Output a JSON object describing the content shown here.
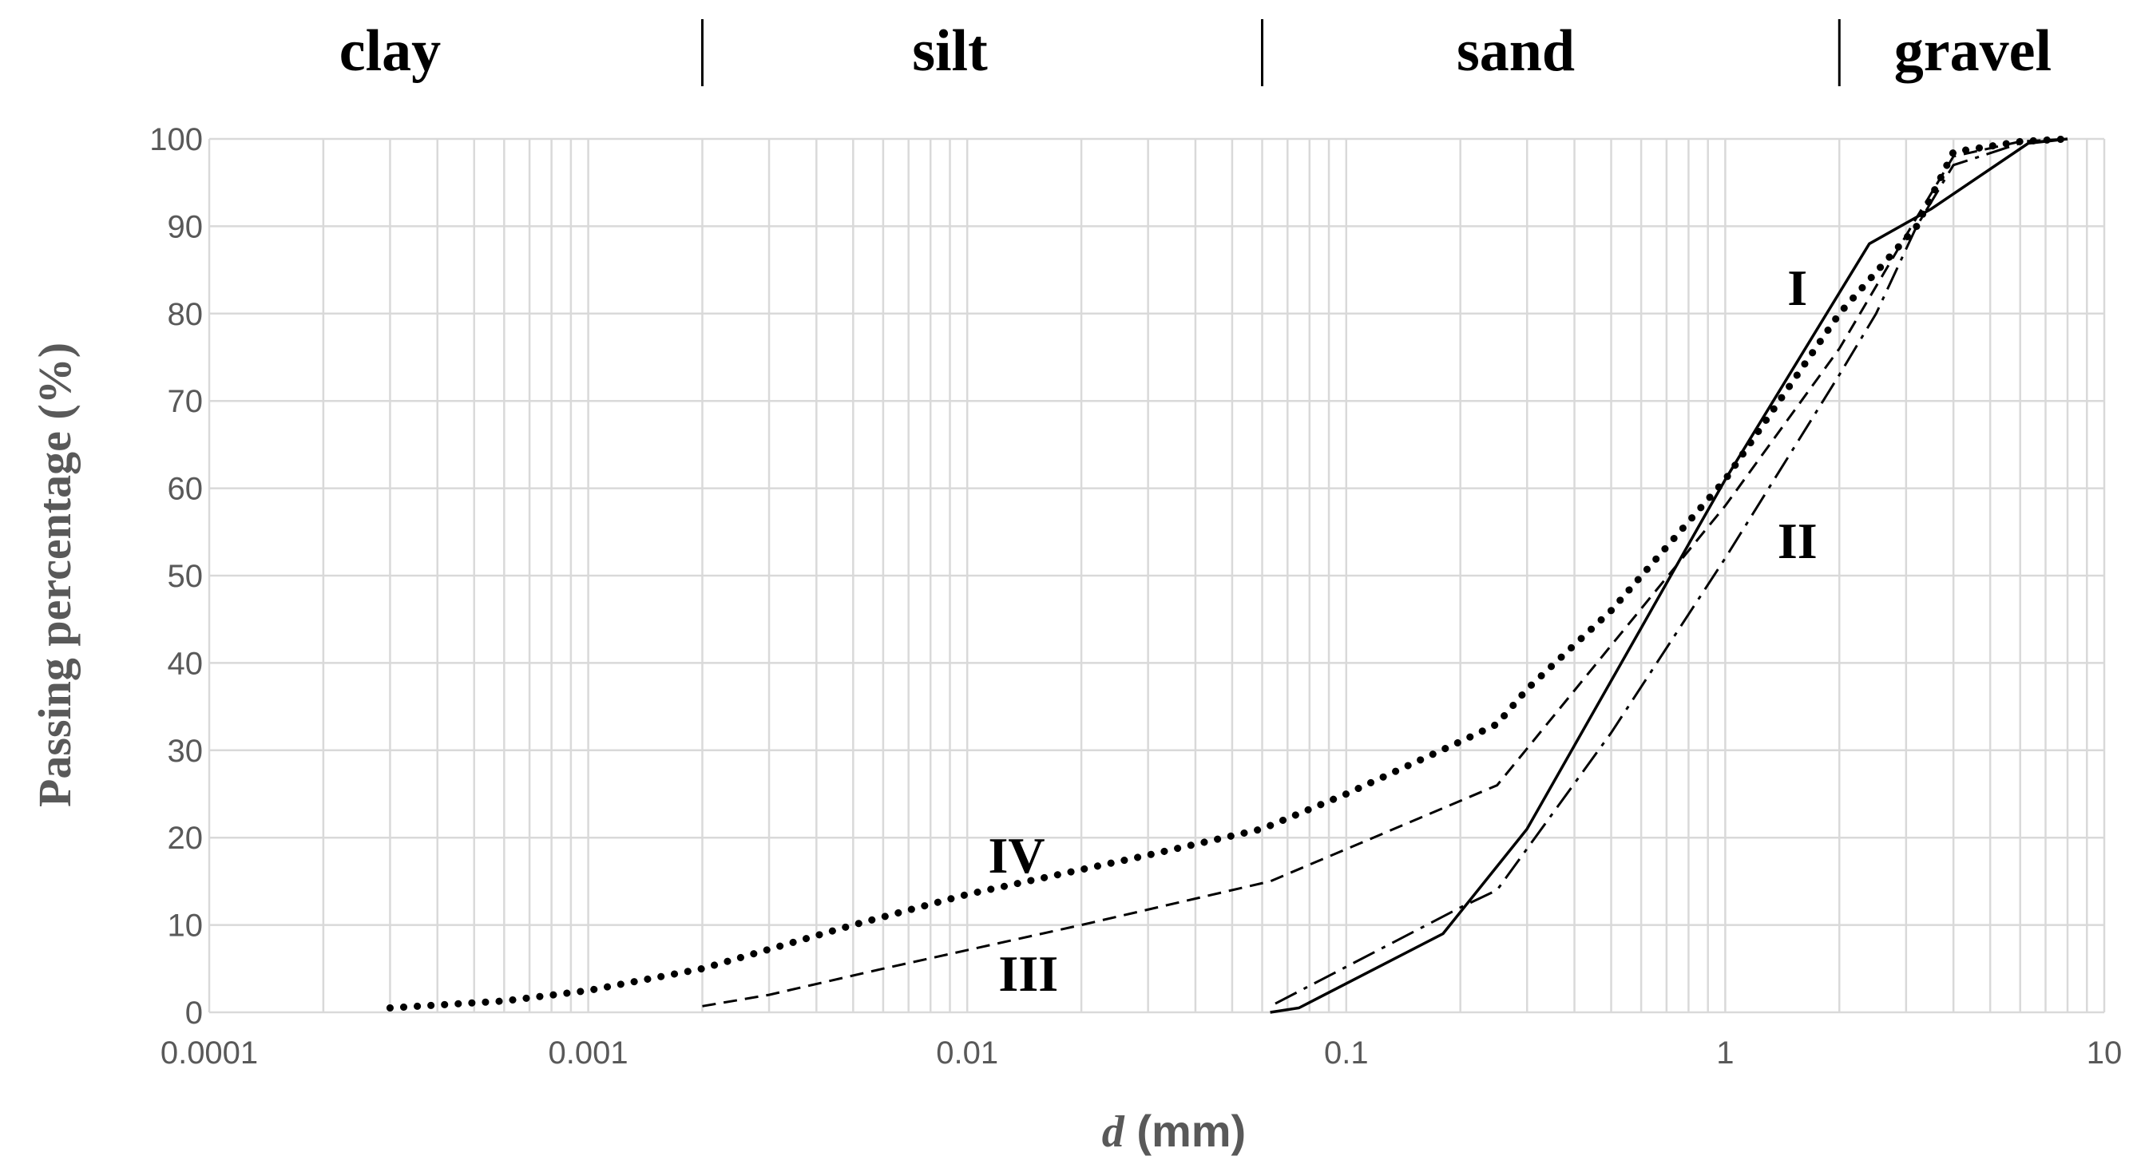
{
  "chart_data": {
    "type": "line",
    "title": "",
    "xlabel_italic": "d",
    "xlabel_rest": " (mm)",
    "ylabel": "Passing percentage  (%)",
    "xscale": "log",
    "xlim": [
      0.0001,
      10
    ],
    "ylim": [
      0,
      100
    ],
    "grid": true,
    "legend": "none",
    "x_tick_labels": [
      "0.0001",
      "0.001",
      "0.01",
      "0.1",
      "1",
      "10"
    ],
    "y_tick_labels": [
      "0",
      "10",
      "20",
      "30",
      "40",
      "50",
      "60",
      "70",
      "80",
      "90",
      "100"
    ],
    "zones": [
      {
        "label": "clay",
        "x": 0.0003
      },
      {
        "label": "silt",
        "x": 0.009
      },
      {
        "label": "sand",
        "x": 0.28
      },
      {
        "label": "gravel",
        "x": 4.5
      }
    ],
    "zone_boundaries": [
      0.002,
      0.06,
      2
    ],
    "series": [
      {
        "label": "I",
        "style": "solid",
        "label_at": [
          1.55,
          83
        ],
        "points": [
          [
            0.063,
            0
          ],
          [
            0.075,
            0.5
          ],
          [
            0.18,
            9
          ],
          [
            0.3,
            21
          ],
          [
            0.6,
            44
          ],
          [
            1.0,
            61
          ],
          [
            2.4,
            88
          ],
          [
            3.5,
            92
          ],
          [
            6.3,
            99.5
          ],
          [
            8,
            100
          ]
        ]
      },
      {
        "label": "II",
        "style": "dashdot",
        "label_at": [
          1.55,
          54
        ],
        "points": [
          [
            0.065,
            1
          ],
          [
            0.2,
            12
          ],
          [
            0.25,
            14
          ],
          [
            0.5,
            32
          ],
          [
            1.0,
            52
          ],
          [
            2.0,
            73
          ],
          [
            2.5,
            80
          ],
          [
            3.2,
            90
          ],
          [
            4,
            97
          ],
          [
            6,
            99.5
          ],
          [
            8,
            100
          ]
        ]
      },
      {
        "label": "III",
        "style": "dashed",
        "label_at": [
          0.0145,
          4.5
        ],
        "points": [
          [
            0.002,
            0.7
          ],
          [
            0.003,
            2
          ],
          [
            0.006,
            5
          ],
          [
            0.02,
            10
          ],
          [
            0.063,
            15
          ],
          [
            0.25,
            26
          ],
          [
            0.5,
            42
          ],
          [
            1.0,
            58
          ],
          [
            2.0,
            76
          ],
          [
            3.2,
            91
          ],
          [
            4,
            98
          ],
          [
            6,
            99.7
          ],
          [
            8,
            100
          ]
        ]
      },
      {
        "label": "IV",
        "style": "dotted",
        "label_at": [
          0.0135,
          18
        ],
        "points": [
          [
            0.0003,
            0.5
          ],
          [
            0.0006,
            1.3
          ],
          [
            0.001,
            2.5
          ],
          [
            0.002,
            5
          ],
          [
            0.005,
            10
          ],
          [
            0.01,
            13.5
          ],
          [
            0.03,
            18
          ],
          [
            0.06,
            21
          ],
          [
            0.1,
            25
          ],
          [
            0.2,
            31
          ],
          [
            0.25,
            33
          ],
          [
            0.3,
            37
          ],
          [
            0.5,
            46
          ],
          [
            1.0,
            61
          ],
          [
            2.0,
            80
          ],
          [
            3.2,
            90
          ],
          [
            4,
            98.5
          ],
          [
            6,
            99.7
          ],
          [
            8,
            100
          ]
        ]
      }
    ]
  }
}
